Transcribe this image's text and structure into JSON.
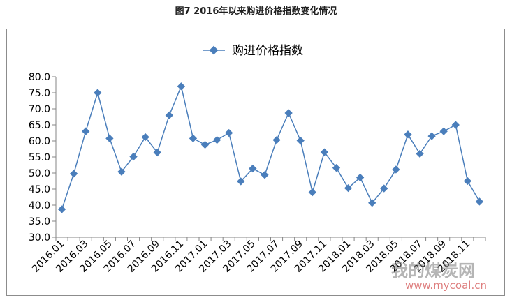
{
  "figure": {
    "caption": "图7  2016年以来购进价格指数变化情况",
    "watermark_name": "我的煤炭网",
    "watermark_url": "www.mycoal.cn"
  },
  "colors": {
    "series": "#4a7ebb",
    "axis": "#868686",
    "text": "#000000"
  },
  "chart_data": {
    "type": "line",
    "title": "",
    "xlabel": "",
    "ylabel": "",
    "legend": {
      "position": "top-center",
      "entries": [
        "购进价格指数"
      ]
    },
    "grid": false,
    "ylim": [
      30.0,
      80.0
    ],
    "yticks": [
      "30.0",
      "35.0",
      "40.0",
      "45.0",
      "50.0",
      "55.0",
      "60.0",
      "65.0",
      "70.0",
      "75.0",
      "80.0"
    ],
    "categories": [
      "2016.01",
      "2016.02",
      "2016.03",
      "2016.04",
      "2016.05",
      "2016.06",
      "2016.07",
      "2016.08",
      "2016.09",
      "2016.10",
      "2016.11",
      "2016.12",
      "2017.01",
      "2017.02",
      "2017.03",
      "2017.04",
      "2017.05",
      "2017.06",
      "2017.07",
      "2017.08",
      "2017.09",
      "2017.10",
      "2017.11",
      "2017.12",
      "2018.01",
      "2018.02",
      "2018.03",
      "2018.04",
      "2018.05",
      "2018.06",
      "2018.07",
      "2018.08",
      "2018.09",
      "2018.10",
      "2018.11",
      "2018.12"
    ],
    "xtick_labels": [
      "2016.01",
      "2016.03",
      "2016.05",
      "2016.07",
      "2016.09",
      "2016.11",
      "2017.01",
      "2017.03",
      "2017.05",
      "2017.07",
      "2017.09",
      "2017.11",
      "2018.01",
      "2018.03",
      "2018.05",
      "2018.07",
      "2018.09",
      "2018.11"
    ],
    "series": [
      {
        "name": "购进价格指数",
        "values": [
          38.7,
          49.8,
          63.0,
          75.0,
          60.8,
          50.4,
          55.1,
          61.2,
          56.4,
          68.0,
          77.0,
          60.8,
          58.8,
          60.3,
          62.5,
          47.4,
          51.4,
          49.4,
          60.3,
          68.7,
          60.1,
          44.0,
          56.5,
          51.6,
          45.3,
          48.6,
          40.7,
          45.2,
          51.1,
          62.0,
          56.0,
          61.5,
          63.0,
          65.0,
          47.5,
          41.1
        ]
      }
    ]
  }
}
